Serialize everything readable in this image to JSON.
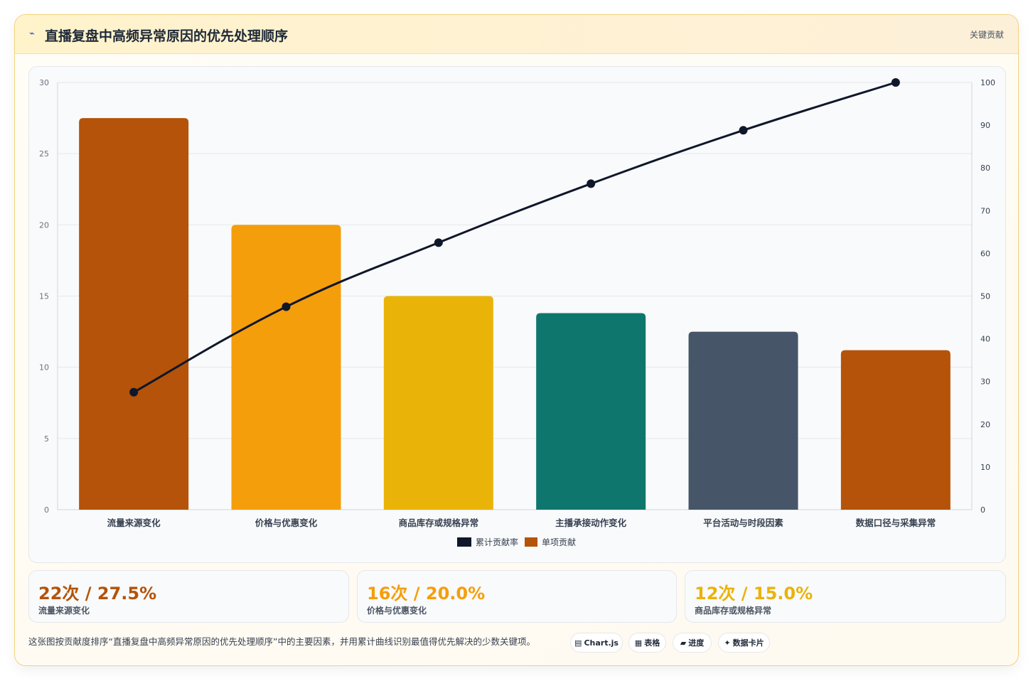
{
  "header": {
    "icon": "chart-icon",
    "title": "直播复盘中高频异常原因的优先处理顺序",
    "badge": "关键贡献"
  },
  "chart_data": {
    "type": "bar",
    "categories": [
      "流量来源变化",
      "价格与优惠变化",
      "商品库存或规格异常",
      "主播承接动作变化",
      "平台活动与时段因素",
      "数据口径与采集异常"
    ],
    "series": [
      {
        "name": "单项贡献",
        "type": "bar",
        "axis": "left",
        "values": [
          27.5,
          20.0,
          15.0,
          13.8,
          12.5,
          11.2
        ],
        "colors": [
          "#b45309",
          "#f59e0b",
          "#eab308",
          "#0f766e",
          "#475569",
          "#b45309"
        ]
      },
      {
        "name": "累计贡献率",
        "type": "line",
        "axis": "right",
        "values": [
          27.5,
          47.5,
          62.5,
          76.3,
          88.8,
          100
        ],
        "color": "#0f172a"
      }
    ],
    "ylim_left": [
      0,
      30
    ],
    "yticks_left": [
      0,
      5,
      10,
      15,
      20,
      25,
      30
    ],
    "ylim_right": [
      0,
      100
    ],
    "yticks_right": [
      0,
      10,
      20,
      30,
      40,
      50,
      60,
      70,
      80,
      90,
      100
    ],
    "grid": true,
    "legend": "bottom",
    "legend_order": [
      "累计贡献率",
      "单项贡献"
    ]
  },
  "stats": [
    {
      "value": "22次 / 27.5%",
      "label": "流量来源变化",
      "color": "#b45309"
    },
    {
      "value": "16次 / 20.0%",
      "label": "价格与优惠变化",
      "color": "#f59e0b"
    },
    {
      "value": "12次 / 15.0%",
      "label": "商品库存或规格异常",
      "color": "#eab308"
    }
  ],
  "footer": {
    "description": "这张图按贡献度排序“直播复盘中高频异常原因的优先处理顺序”中的主要因素，并用累计曲线识别最值得优先解决的少数关键项。",
    "chips": [
      {
        "icon": "▤",
        "label": "Chart.js"
      },
      {
        "icon": "▦",
        "label": "表格"
      },
      {
        "icon": "▰",
        "label": "进度"
      },
      {
        "icon": "✦",
        "label": "数据卡片"
      }
    ]
  }
}
